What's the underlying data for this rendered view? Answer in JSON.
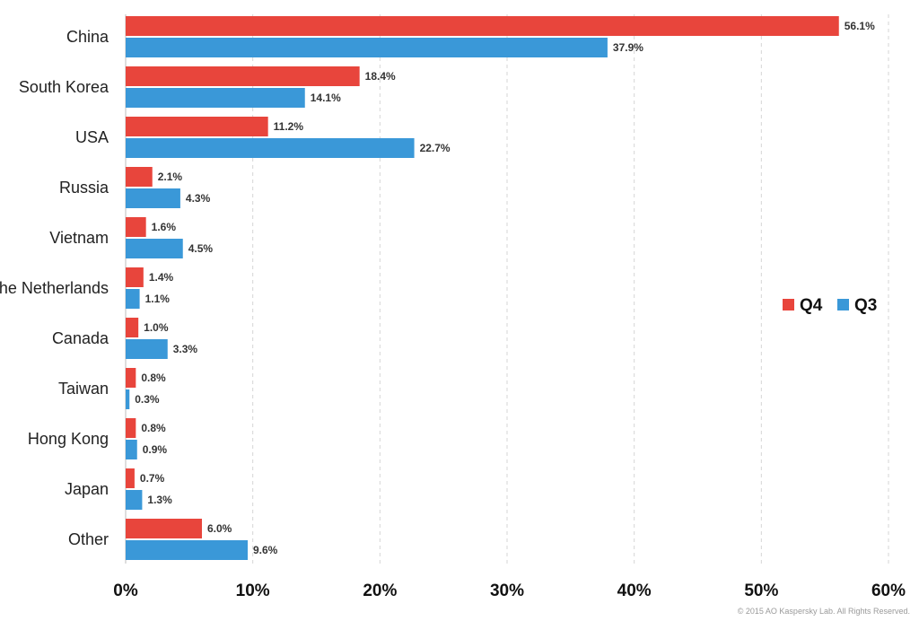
{
  "chart_data": {
    "type": "bar",
    "orientation": "horizontal",
    "categories": [
      "China",
      "South Korea",
      "USA",
      "Russia",
      "Vietnam",
      "the Netherlands",
      "Canada",
      "Taiwan",
      "Hong Kong",
      "Japan",
      "Other"
    ],
    "series": [
      {
        "name": "Q4",
        "color": "#e8453c",
        "values": [
          56.1,
          18.4,
          11.2,
          2.1,
          1.6,
          1.4,
          1.0,
          0.8,
          0.8,
          0.7,
          6.0
        ],
        "labels": [
          "56.1%",
          "18.4%",
          "11.2%",
          "2.1%",
          "1.6%",
          "1.4%",
          "1.0%",
          "0.8%",
          "0.8%",
          "0.7%",
          "6.0%"
        ]
      },
      {
        "name": "Q3",
        "color": "#3a98d8",
        "values": [
          37.9,
          14.1,
          22.7,
          4.3,
          4.5,
          1.1,
          3.3,
          0.3,
          0.9,
          1.3,
          9.6
        ],
        "labels": [
          "37.9%",
          "14.1%",
          "22.7%",
          "4.3%",
          "4.5%",
          "1.1%",
          "3.3%",
          "0.3%",
          "0.9%",
          "1.3%",
          "9.6%"
        ]
      }
    ],
    "xlim": [
      0,
      60
    ],
    "xticks": [
      0,
      10,
      20,
      30,
      40,
      50,
      60
    ],
    "xtick_labels": [
      "0%",
      "10%",
      "20%",
      "30%",
      "40%",
      "50%",
      "60%"
    ],
    "grid": "vertical dashed",
    "legend_position": "right"
  },
  "copyright": "© 2015 AO Kaspersky Lab. All Rights Reserved."
}
